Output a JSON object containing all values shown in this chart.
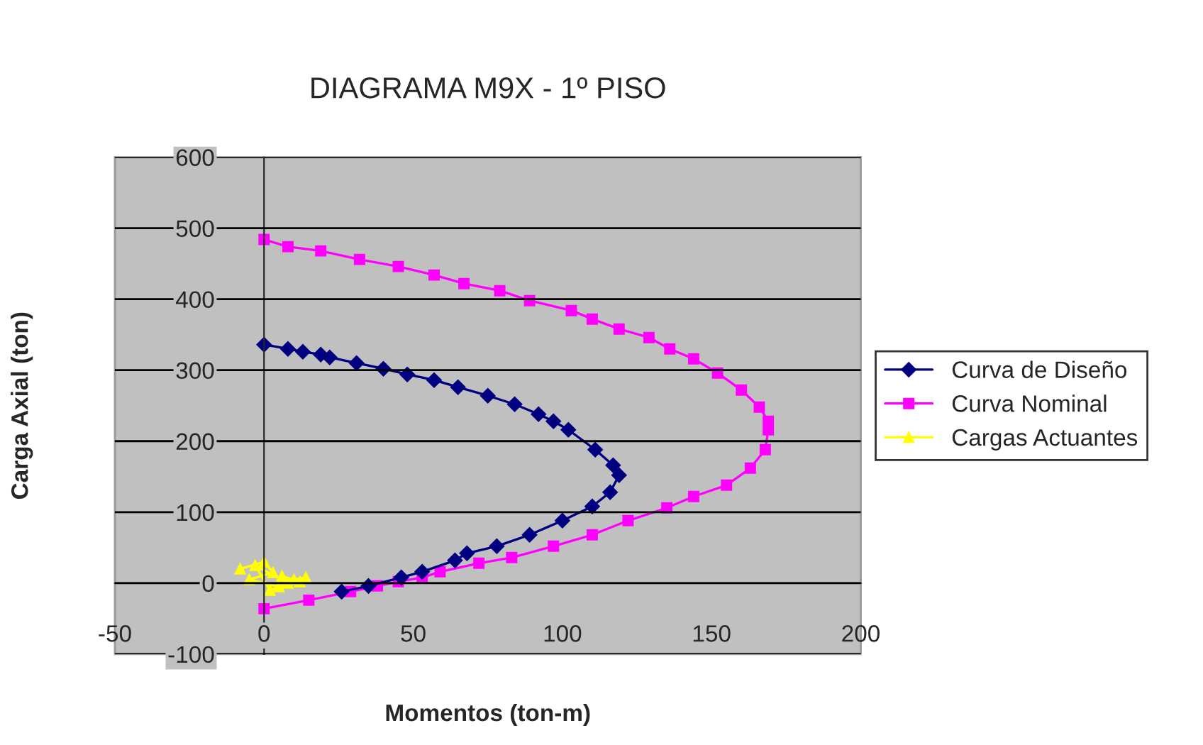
{
  "chart_data": {
    "type": "line",
    "title": "DIAGRAMA M9X - 1º PISO",
    "xlabel": "Momentos (ton-m)",
    "ylabel": "Carga Axial (ton)",
    "xlim": [
      -50,
      200
    ],
    "xticks": [
      -50,
      0,
      50,
      100,
      150,
      200
    ],
    "ylim": [
      -100,
      600
    ],
    "yticks": [
      -100,
      0,
      100,
      200,
      300,
      400,
      500,
      600
    ],
    "grid": "y",
    "legend": "right",
    "series": [
      {
        "name": "Curva de Diseño",
        "color": "#000080",
        "marker": "diamond",
        "x": [
          0,
          8,
          13,
          19,
          22,
          31,
          40,
          48,
          57,
          65,
          75,
          84,
          92,
          97,
          102,
          111,
          117,
          119,
          116,
          110,
          100,
          89,
          78,
          68,
          64,
          53,
          46,
          35,
          26
        ],
        "values": [
          336,
          330,
          326,
          322,
          318,
          310,
          302,
          294,
          286,
          276,
          264,
          252,
          238,
          228,
          216,
          188,
          166,
          152,
          128,
          108,
          88,
          68,
          52,
          42,
          32,
          16,
          8,
          -4,
          -12
        ]
      },
      {
        "name": "Curva Nominal",
        "color": "#ff00ff",
        "marker": "square",
        "x": [
          0,
          8,
          19,
          32,
          45,
          57,
          67,
          79,
          89,
          103,
          110,
          119,
          129,
          136,
          144,
          152,
          160,
          166,
          169,
          169,
          168,
          163,
          155,
          144,
          135,
          122,
          110,
          97,
          83,
          72,
          59,
          53,
          45,
          38,
          29,
          15,
          0
        ],
        "values": [
          484,
          474,
          468,
          456,
          446,
          434,
          422,
          412,
          398,
          384,
          372,
          358,
          346,
          330,
          316,
          296,
          272,
          248,
          228,
          216,
          188,
          162,
          138,
          122,
          106,
          88,
          68,
          52,
          36,
          28,
          16,
          8,
          2,
          -4,
          -12,
          -24,
          -36
        ]
      },
      {
        "name": "Cargas Actuantes",
        "color": "#ffff00",
        "marker": "triangle",
        "x": [
          -8,
          0,
          3,
          -5,
          5,
          10,
          14,
          2,
          -3,
          8,
          12,
          6
        ],
        "values": [
          20,
          30,
          15,
          5,
          -5,
          5,
          8,
          -10,
          25,
          0,
          2,
          10
        ]
      }
    ]
  }
}
